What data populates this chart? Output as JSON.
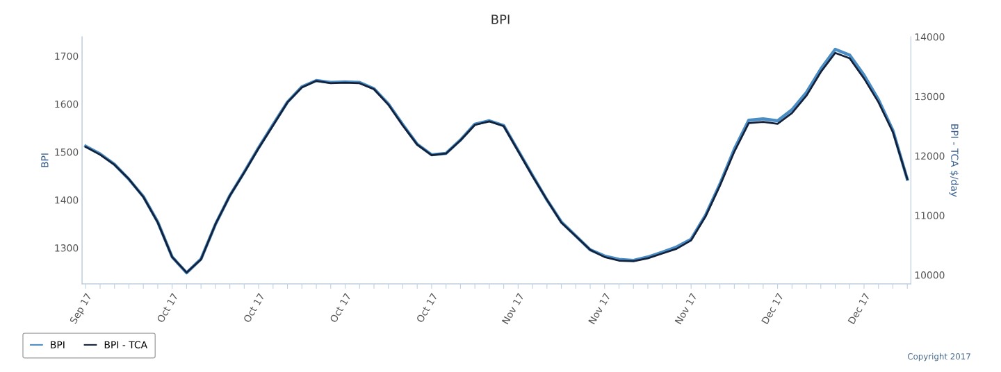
{
  "chart_data": {
    "type": "line",
    "title": "BPI",
    "ylabel": "BPI",
    "y2label": "BPI - TCA $/day",
    "categories": [
      "Sep 17",
      null,
      null,
      null,
      null,
      null,
      "Oct 17",
      null,
      null,
      null,
      null,
      null,
      "Oct 17",
      null,
      null,
      null,
      null,
      null,
      "Oct 17",
      null,
      null,
      null,
      null,
      null,
      "Oct 17",
      null,
      null,
      null,
      null,
      null,
      "Nov 17",
      null,
      null,
      null,
      null,
      null,
      "Nov 17",
      null,
      null,
      null,
      null,
      null,
      "Nov 17",
      null,
      null,
      null,
      null,
      null,
      "Dec 17",
      null,
      null,
      null,
      null,
      null,
      "Dec 17",
      null,
      null,
      null
    ],
    "series": [
      {
        "name": "BPI",
        "color": "#4a8cc4",
        "values": [
          1512,
          1496,
          1474,
          1443,
          1407,
          1354,
          1281,
          1248,
          1277,
          1349,
          1409,
          1458,
          1509,
          1557,
          1604,
          1636,
          1649,
          1645,
          1646,
          1645,
          1632,
          1600,
          1557,
          1516,
          1494,
          1497,
          1525,
          1558,
          1565,
          1555,
          1503,
          1451,
          1400,
          1354,
          1325,
          1296,
          1283,
          1276,
          1274,
          1281,
          1291,
          1302,
          1318,
          1368,
          1433,
          1506,
          1566,
          1569,
          1565,
          1588,
          1624,
          1673,
          1714,
          1702,
          1660,
          1609,
          1545,
          1443
        ]
      },
      {
        "name": "BPI - TCA",
        "color": "#14213a",
        "axis": "y2",
        "values": [
          12150,
          12020,
          11850,
          11610,
          11310,
          10880,
          10300,
          10040,
          10260,
          10850,
          11330,
          11720,
          12130,
          12510,
          12900,
          13150,
          13260,
          13220,
          13230,
          13220,
          13120,
          12860,
          12510,
          12190,
          12010,
          12040,
          12260,
          12520,
          12580,
          12500,
          12080,
          11660,
          11260,
          10880,
          10650,
          10420,
          10300,
          10240,
          10230,
          10280,
          10360,
          10440,
          10580,
          10980,
          11500,
          12070,
          12550,
          12570,
          12540,
          12720,
          13010,
          13410,
          13730,
          13640,
          13300,
          12900,
          12400,
          11610
        ]
      }
    ],
    "ylim": [
      1225,
      1740
    ],
    "yticks": [
      1300,
      1400,
      1500,
      1600,
      1700
    ],
    "y2lim": [
      9850,
      14000
    ],
    "y2ticks": [
      10000,
      11000,
      12000,
      13000,
      14000
    ],
    "grid": false,
    "legend": "bottom",
    "marker": "none",
    "line_style": "solid",
    "annotations": [
      "Copyright 2017"
    ]
  }
}
